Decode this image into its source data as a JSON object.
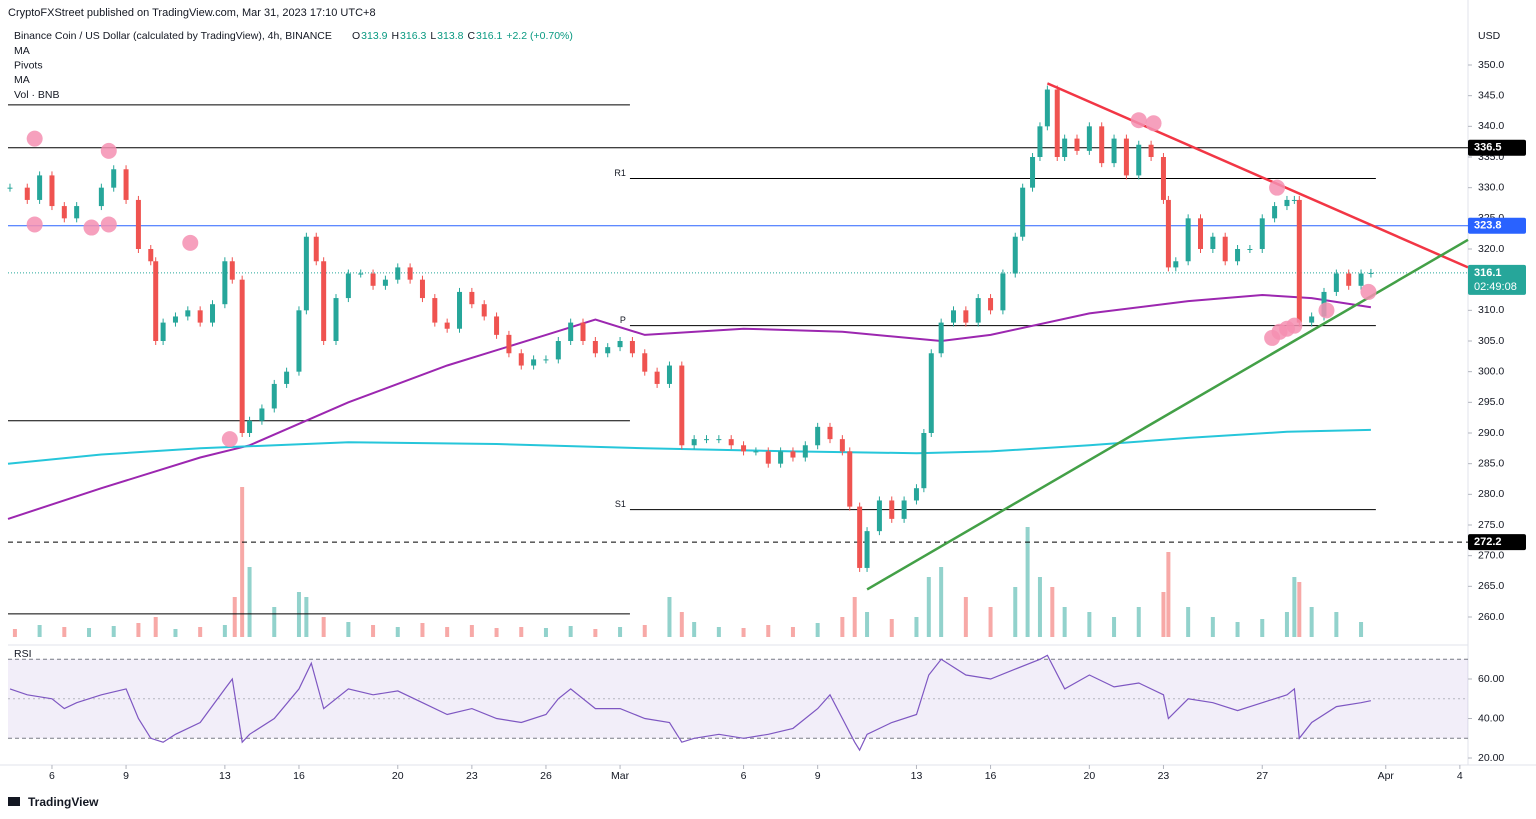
{
  "header": {
    "published": "CryptoFXStreet published on TradingView.com, Mar 31, 2023 17:10 UTC+8",
    "symbol": "Binance Coin / US Dollar (calculated by TradingView), 4h, BINANCE",
    "ohlc": [
      {
        "k": "O",
        "v": "313.9"
      },
      {
        "k": "H",
        "v": "316.3"
      },
      {
        "k": "L",
        "v": "313.8"
      },
      {
        "k": "C",
        "v": "316.1"
      }
    ],
    "change": "+2.2 (+0.70%)",
    "indicators": [
      "MA",
      "Pivots",
      "MA",
      "Vol · BNB"
    ]
  },
  "chart_data": {
    "type": "candlestick",
    "currency": "USD",
    "up_color": "#26a69a",
    "down_color": "#ef5350",
    "x": [
      4.3,
      5,
      5.5,
      6,
      6.5,
      7,
      8,
      8.5,
      9,
      9.5,
      10,
      10.2,
      10.5,
      11,
      11.5,
      12,
      12.5,
      13,
      13.3,
      13.7,
      14,
      14.5,
      15,
      15.5,
      16,
      16.3,
      16.7,
      17,
      17.5,
      18,
      18.5,
      19,
      19.5,
      20,
      20.5,
      21,
      21.5,
      22,
      22.5,
      23,
      23.5,
      24,
      24.5,
      25,
      25.5,
      26,
      26.5,
      27,
      27.5,
      28,
      28.5,
      29,
      29.5,
      30,
      30.5,
      31,
      31.5,
      32,
      32.5,
      33,
      33.5,
      34,
      34.5,
      35,
      35.5,
      36,
      36.5,
      37,
      37.5,
      38,
      38.3,
      38.7,
      39,
      39.5,
      40,
      40.5,
      41,
      41.3,
      41.6,
      42,
      42.5,
      43,
      43.5,
      44,
      44.5,
      45,
      45.3,
      45.7,
      46,
      46.3,
      46.7,
      47,
      47.5,
      48,
      48.5,
      49,
      49.5,
      50,
      50.5,
      51,
      51.2,
      51.5,
      52,
      52.5,
      53,
      53.5,
      54,
      54.5,
      55,
      55.5,
      56,
      56.3,
      56.5,
      57,
      57.5,
      58,
      58.5,
      59,
      59.4
    ],
    "close": [
      330,
      328,
      332,
      327,
      325,
      327,
      330,
      333,
      328,
      320,
      318,
      305,
      308,
      309,
      310,
      308,
      311,
      318,
      315,
      290,
      292,
      294,
      298,
      300,
      310,
      322,
      318,
      305,
      312,
      316,
      316,
      314,
      315,
      317,
      315,
      312,
      308,
      307,
      313,
      311,
      309,
      306,
      303,
      301,
      302,
      302,
      305,
      308,
      305,
      303,
      304,
      305,
      303,
      300,
      298,
      301,
      288,
      289,
      289,
      289,
      288,
      287,
      287,
      285,
      287,
      286,
      288,
      291,
      289,
      287,
      278,
      268,
      274,
      279,
      276,
      279,
      281,
      290,
      303,
      308,
      310,
      308,
      312,
      310,
      316,
      322,
      330,
      335,
      340,
      346,
      335,
      338,
      336,
      340,
      334,
      338,
      332,
      337,
      335,
      328,
      317,
      318,
      325,
      320,
      322,
      318,
      320,
      320,
      325,
      327,
      328,
      328,
      308,
      309,
      313,
      316,
      314,
      316,
      316.1
    ],
    "xlim": [
      4.22,
      63.33
    ],
    "ylim": [
      257,
      352
    ],
    "xticks": [
      {
        "value": 6,
        "label": "6"
      },
      {
        "value": 9,
        "label": "9"
      },
      {
        "value": 13,
        "label": "13"
      },
      {
        "value": 16,
        "label": "16"
      },
      {
        "value": 20,
        "label": "20"
      },
      {
        "value": 23,
        "label": "23"
      },
      {
        "value": 26,
        "label": "26"
      },
      {
        "value": 29,
        "label": "Mar"
      },
      {
        "value": 34,
        "label": "6"
      },
      {
        "value": 37,
        "label": "9"
      },
      {
        "value": 41,
        "label": "13"
      },
      {
        "value": 44,
        "label": "16"
      },
      {
        "value": 48,
        "label": "20"
      },
      {
        "value": 51,
        "label": "23"
      },
      {
        "value": 55,
        "label": "27"
      },
      {
        "value": 60,
        "label": "Apr"
      },
      {
        "value": 63,
        "label": "4"
      }
    ],
    "yticks": [
      {
        "value": 350,
        "label": "350.0"
      },
      {
        "value": 345,
        "label": "345.0"
      },
      {
        "value": 340,
        "label": "340.0"
      },
      {
        "value": 335,
        "label": "335.0"
      },
      {
        "value": 330,
        "label": "330.0"
      },
      {
        "value": 325,
        "label": "325.0"
      },
      {
        "value": 320,
        "label": "320.0"
      },
      {
        "value": 310,
        "label": "310.0"
      },
      {
        "value": 305,
        "label": "305.0"
      },
      {
        "value": 300,
        "label": "300.0"
      },
      {
        "value": 295,
        "label": "295.0"
      },
      {
        "value": 290,
        "label": "290.0"
      },
      {
        "value": 285,
        "label": "285.0"
      },
      {
        "value": 280,
        "label": "280.0"
      },
      {
        "value": 275,
        "label": "275.0"
      },
      {
        "value": 270,
        "label": "270.0"
      },
      {
        "value": 265,
        "label": "265.0"
      },
      {
        "value": 260,
        "label": "260.0"
      }
    ],
    "levels": [
      {
        "value": 336.5,
        "color": "#000000",
        "dash": false
      },
      {
        "value": 323.8,
        "color": "#2962ff",
        "dash": false
      },
      {
        "value": 272.2,
        "color": "#000000",
        "dash": true
      }
    ],
    "pivots": [
      {
        "name": "R1",
        "value": 331.5
      },
      {
        "name": "P",
        "value": 307.5
      },
      {
        "name": "S1",
        "value": 277.5
      }
    ],
    "pivot_span": [
      29.4,
      59.6
    ],
    "old_pivots": [
      343.5,
      292,
      260.5
    ],
    "old_pivot_span": [
      4.22,
      29.4
    ],
    "trendlines": [
      {
        "color": "#f23645",
        "x": [
          46.3,
          63.33
        ],
        "y": [
          347,
          317
        ]
      },
      {
        "color": "#43a047",
        "x": [
          39,
          63.33
        ],
        "y": [
          264.5,
          321.5
        ]
      }
    ],
    "ma": [
      {
        "color": "#9c27b0",
        "x": [
          4.22,
          8,
          12,
          14,
          18,
          22,
          26,
          28,
          30,
          34,
          38,
          42,
          44,
          48,
          52,
          55,
          57,
          59.4
        ],
        "values": [
          276,
          281,
          286,
          288,
          295,
          301,
          306,
          308.5,
          306,
          307,
          306.5,
          305,
          306,
          309.5,
          311.5,
          312.5,
          312,
          310.5
        ]
      },
      {
        "color": "#26c6da",
        "x": [
          4.22,
          8,
          12,
          18,
          24,
          30,
          36,
          41,
          44,
          48,
          52,
          56,
          59.4
        ],
        "values": [
          285,
          286.5,
          287.5,
          288.5,
          288.2,
          287.5,
          287,
          286.7,
          287,
          288,
          289.2,
          290.2,
          290.5
        ]
      }
    ],
    "markers": {
      "color": "#f48fb1",
      "x": [
        5.3,
        5.3,
        7.6,
        8.3,
        8.3,
        11.6,
        13.2,
        50,
        50.6,
        55.6,
        55.4,
        55.7,
        56,
        56.3,
        57.6,
        59.3
      ],
      "y": [
        338,
        324,
        323.5,
        336,
        324,
        321,
        289,
        341,
        340.5,
        330,
        305.5,
        306.5,
        307,
        307.5,
        310,
        313
      ]
    },
    "volume": {
      "x": [
        4.5,
        5.5,
        6.5,
        7.5,
        8.5,
        9.5,
        10.2,
        11,
        12,
        13,
        13.4,
        13.7,
        14,
        15,
        16,
        16.3,
        17,
        18,
        19,
        20,
        21,
        22,
        23,
        24,
        25,
        26,
        27,
        28,
        29,
        30,
        31,
        31.5,
        32,
        33,
        34,
        35,
        36,
        37,
        38,
        38.5,
        39,
        40,
        41,
        41.5,
        42,
        43,
        44,
        45,
        45.5,
        46,
        46.5,
        47,
        48,
        49,
        50,
        51,
        51.2,
        52,
        53,
        54,
        55,
        56,
        56.3,
        56.5,
        57,
        58,
        59
      ],
      "values": [
        8,
        12,
        10,
        9,
        11,
        14,
        20,
        8,
        10,
        12,
        40,
        150,
        70,
        30,
        45,
        40,
        20,
        15,
        12,
        10,
        14,
        10,
        12,
        9,
        10,
        9,
        11,
        8,
        10,
        12,
        40,
        25,
        15,
        10,
        9,
        12,
        10,
        14,
        20,
        40,
        25,
        18,
        20,
        60,
        70,
        40,
        30,
        50,
        110,
        60,
        50,
        30,
        25,
        20,
        30,
        45,
        85,
        30,
        20,
        15,
        18,
        25,
        60,
        55,
        30,
        25,
        15
      ],
      "vlim": [
        0,
        150
      ]
    },
    "price_tag": {
      "value": 316.1,
      "countdown": "02:49:08"
    }
  },
  "rsi": {
    "title": "RSI",
    "color": "#7e57c2",
    "x": [
      4.3,
      5,
      6,
      6.5,
      7,
      8,
      9,
      9.5,
      10,
      10.5,
      11,
      12,
      13,
      13.3,
      13.7,
      14,
      15,
      16,
      16.5,
      17,
      18,
      19,
      20,
      21,
      22,
      23,
      24,
      25,
      26,
      26.5,
      27,
      28,
      29,
      30,
      31,
      31.5,
      32,
      33,
      34,
      35,
      36,
      37,
      37.5,
      38,
      38.5,
      38.7,
      39,
      40,
      41,
      41.5,
      42,
      43,
      44,
      45,
      46,
      46.3,
      47,
      48,
      49,
      50,
      51,
      51.2,
      52,
      53,
      54,
      55,
      56,
      56.3,
      56.5,
      57,
      58,
      59,
      59.4
    ],
    "values": [
      55,
      52,
      50,
      45,
      48,
      52,
      55,
      40,
      30,
      28,
      32,
      38,
      55,
      60,
      28,
      32,
      40,
      55,
      68,
      45,
      55,
      52,
      54,
      48,
      42,
      45,
      40,
      38,
      42,
      50,
      55,
      45,
      45,
      40,
      38,
      28,
      30,
      32,
      30,
      32,
      35,
      45,
      52,
      40,
      28,
      24,
      32,
      38,
      42,
      62,
      70,
      62,
      60,
      65,
      70,
      72,
      55,
      62,
      56,
      58,
      52,
      40,
      50,
      48,
      44,
      48,
      52,
      55,
      30,
      38,
      46,
      48,
      49
    ],
    "ylim": [
      17,
      77
    ],
    "band": [
      30,
      70
    ],
    "yticks": [
      {
        "value": 60,
        "label": "60.00"
      },
      {
        "value": 40,
        "label": "40.00"
      },
      {
        "value": 20,
        "label": "20.00"
      }
    ]
  },
  "footer": "TradingView"
}
